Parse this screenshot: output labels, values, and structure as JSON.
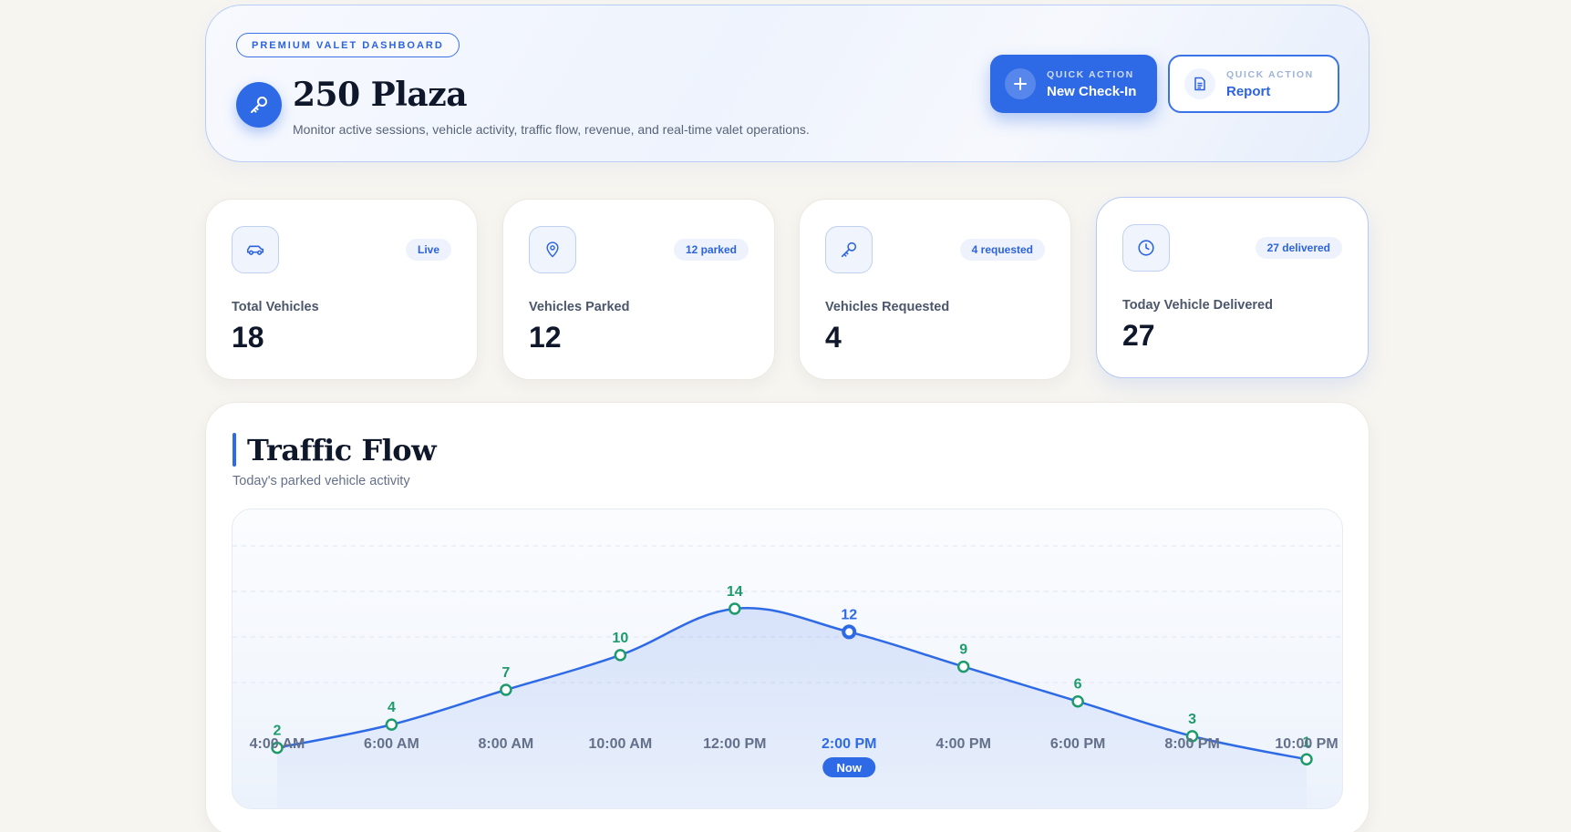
{
  "header": {
    "eyebrow": "PREMIUM VALET DASHBOARD",
    "title": "250 Plaza",
    "subtitle": "Monitor active sessions, vehicle activity, traffic flow, revenue, and real-time valet operations.",
    "brand_icon": "valet-key-icon",
    "quick_actions": [
      {
        "eyebrow": "QUICK ACTION",
        "label": "New Check-In",
        "icon": "plus-icon",
        "style": "primary"
      },
      {
        "eyebrow": "QUICK ACTION",
        "label": "Report",
        "icon": "document-icon",
        "style": "secondary"
      }
    ]
  },
  "stats": [
    {
      "icon": "car-icon",
      "badge": "Live",
      "label": "Total Vehicles",
      "value": "18"
    },
    {
      "icon": "map-pin-icon",
      "badge": "12 parked",
      "label": "Vehicles Parked",
      "value": "12"
    },
    {
      "icon": "key-icon",
      "badge": "4 requested",
      "label": "Vehicles Requested",
      "value": "4"
    },
    {
      "icon": "clock-icon",
      "badge": "27 delivered",
      "label": "Today Vehicle Delivered",
      "value": "27"
    }
  ],
  "traffic": {
    "title": "Traffic Flow",
    "subtitle": "Today's parked vehicle activity"
  },
  "colors": {
    "accent": "#2f6ae6",
    "point": "#1e9b6b",
    "axis_text": "#64708a"
  },
  "chart_data": {
    "type": "line",
    "x": [
      "4:00 AM",
      "6:00 AM",
      "8:00 AM",
      "10:00 AM",
      "12:00 PM",
      "2:00 PM",
      "4:00 PM",
      "6:00 PM",
      "8:00 PM",
      "10:00 PM"
    ],
    "values": [
      2,
      4,
      7,
      10,
      14,
      12,
      9,
      6,
      3,
      1
    ],
    "current_index": 5,
    "current_label": "Now",
    "ylim": [
      0,
      21
    ],
    "grid": true,
    "title": "",
    "xlabel": "",
    "ylabel": ""
  }
}
